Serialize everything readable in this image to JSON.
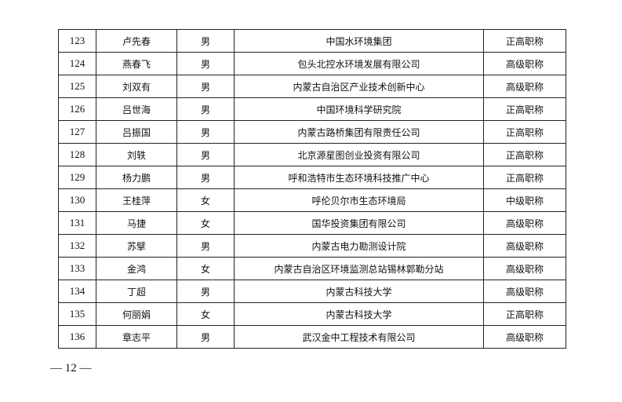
{
  "rows": [
    {
      "no": "123",
      "name": "卢先春",
      "gender": "男",
      "org": "中国水环境集团",
      "title": "正高职称"
    },
    {
      "no": "124",
      "name": "燕春飞",
      "gender": "男",
      "org": "包头北控水环境发展有限公司",
      "title": "高级职称"
    },
    {
      "no": "125",
      "name": "刘双有",
      "gender": "男",
      "org": "内蒙古自治区产业技术创新中心",
      "title": "高级职称"
    },
    {
      "no": "126",
      "name": "吕世海",
      "gender": "男",
      "org": "中国环境科学研究院",
      "title": "正高职称"
    },
    {
      "no": "127",
      "name": "吕振国",
      "gender": "男",
      "org": "内蒙古路桥集团有限责任公司",
      "title": "正高职称"
    },
    {
      "no": "128",
      "name": "刘轶",
      "gender": "男",
      "org": "北京源星图创业投资有限公司",
      "title": "正高职称"
    },
    {
      "no": "129",
      "name": "杨力鹏",
      "gender": "男",
      "org": "呼和浩特市生态环境科技推广中心",
      "title": "正高职称"
    },
    {
      "no": "130",
      "name": "王桂萍",
      "gender": "女",
      "org": "呼伦贝尔市生态环境局",
      "title": "中级职称"
    },
    {
      "no": "131",
      "name": "马捷",
      "gender": "女",
      "org": "国华投资集团有限公司",
      "title": "高级职称"
    },
    {
      "no": "132",
      "name": "苏擘",
      "gender": "男",
      "org": "内蒙古电力勘测设计院",
      "title": "高级职称"
    },
    {
      "no": "133",
      "name": "金鸿",
      "gender": "女",
      "org": "内蒙古自治区环境监测总站锡林郭勒分站",
      "title": "高级职称"
    },
    {
      "no": "134",
      "name": "丁超",
      "gender": "男",
      "org": "内蒙古科技大学",
      "title": "高级职称"
    },
    {
      "no": "135",
      "name": "何丽娟",
      "gender": "女",
      "org": "内蒙古科技大学",
      "title": "正高职称"
    },
    {
      "no": "136",
      "name": "章志平",
      "gender": "男",
      "org": "武汉金中工程技术有限公司",
      "title": "高级职称"
    }
  ],
  "footer": {
    "page_number": "— 12 —"
  }
}
